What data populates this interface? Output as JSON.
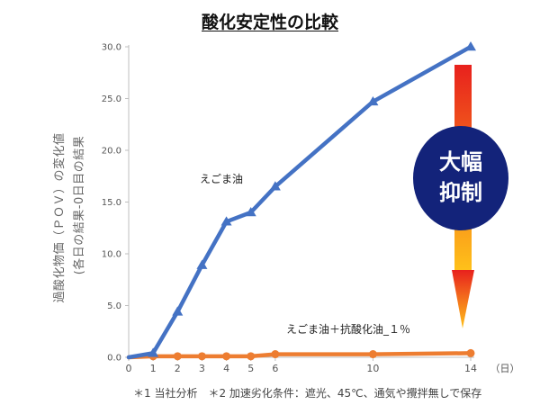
{
  "chart_data": {
    "type": "line",
    "title": "酸化安定性の比較",
    "ylabel_line1": "過酸化物価（ＰＯＶ）の変化値",
    "ylabel_line2": "(各日の結果-0日目の結果",
    "x_unit_label": "（日）",
    "xlim": [
      0,
      14
    ],
    "ylim": [
      0,
      30
    ],
    "y_ticks": [
      "0.0",
      "5.0",
      "10.0",
      "15.0",
      "20.0",
      "25.0",
      "30.0"
    ],
    "x_ticks": [
      "0",
      "1",
      "2",
      "3",
      "4",
      "5",
      "6",
      "10",
      "14"
    ],
    "grid": false,
    "series": [
      {
        "name": "えごま油",
        "color": "#4472c4",
        "x": [
          0,
          1,
          2,
          3,
          4,
          5,
          6,
          10,
          14
        ],
        "y": [
          0,
          0.4,
          4.4,
          8.9,
          13.1,
          14.0,
          16.5,
          24.7,
          30.0
        ]
      },
      {
        "name": "えごま油＋抗酸化油_１％",
        "color": "#ed7d31",
        "x": [
          0,
          1,
          2,
          3,
          4,
          5,
          6,
          10,
          14
        ],
        "y": [
          0,
          0.1,
          0.1,
          0.1,
          0.1,
          0.1,
          0.3,
          0.3,
          0.4
        ]
      }
    ],
    "callout": {
      "text_line1": "大幅",
      "text_line2": "抑制",
      "circle_color": "#13237a",
      "arrow_top_color": "#e8211d",
      "arrow_bottom_color": "#ffc21a"
    }
  },
  "footnote": "＊1 当社分析　＊2 加速劣化条件：遮光、45℃、通気や攪拌無しで保存"
}
